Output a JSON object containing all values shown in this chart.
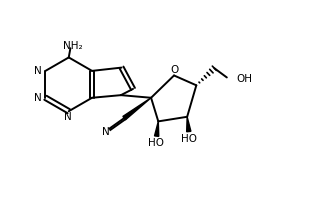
{
  "background_color": "#ffffff",
  "line_color": "#000000",
  "figsize": [
    3.31,
    2.08
  ],
  "dpi": 100,
  "xlim": [
    0,
    10
  ],
  "ylim": [
    0,
    6.3
  ]
}
